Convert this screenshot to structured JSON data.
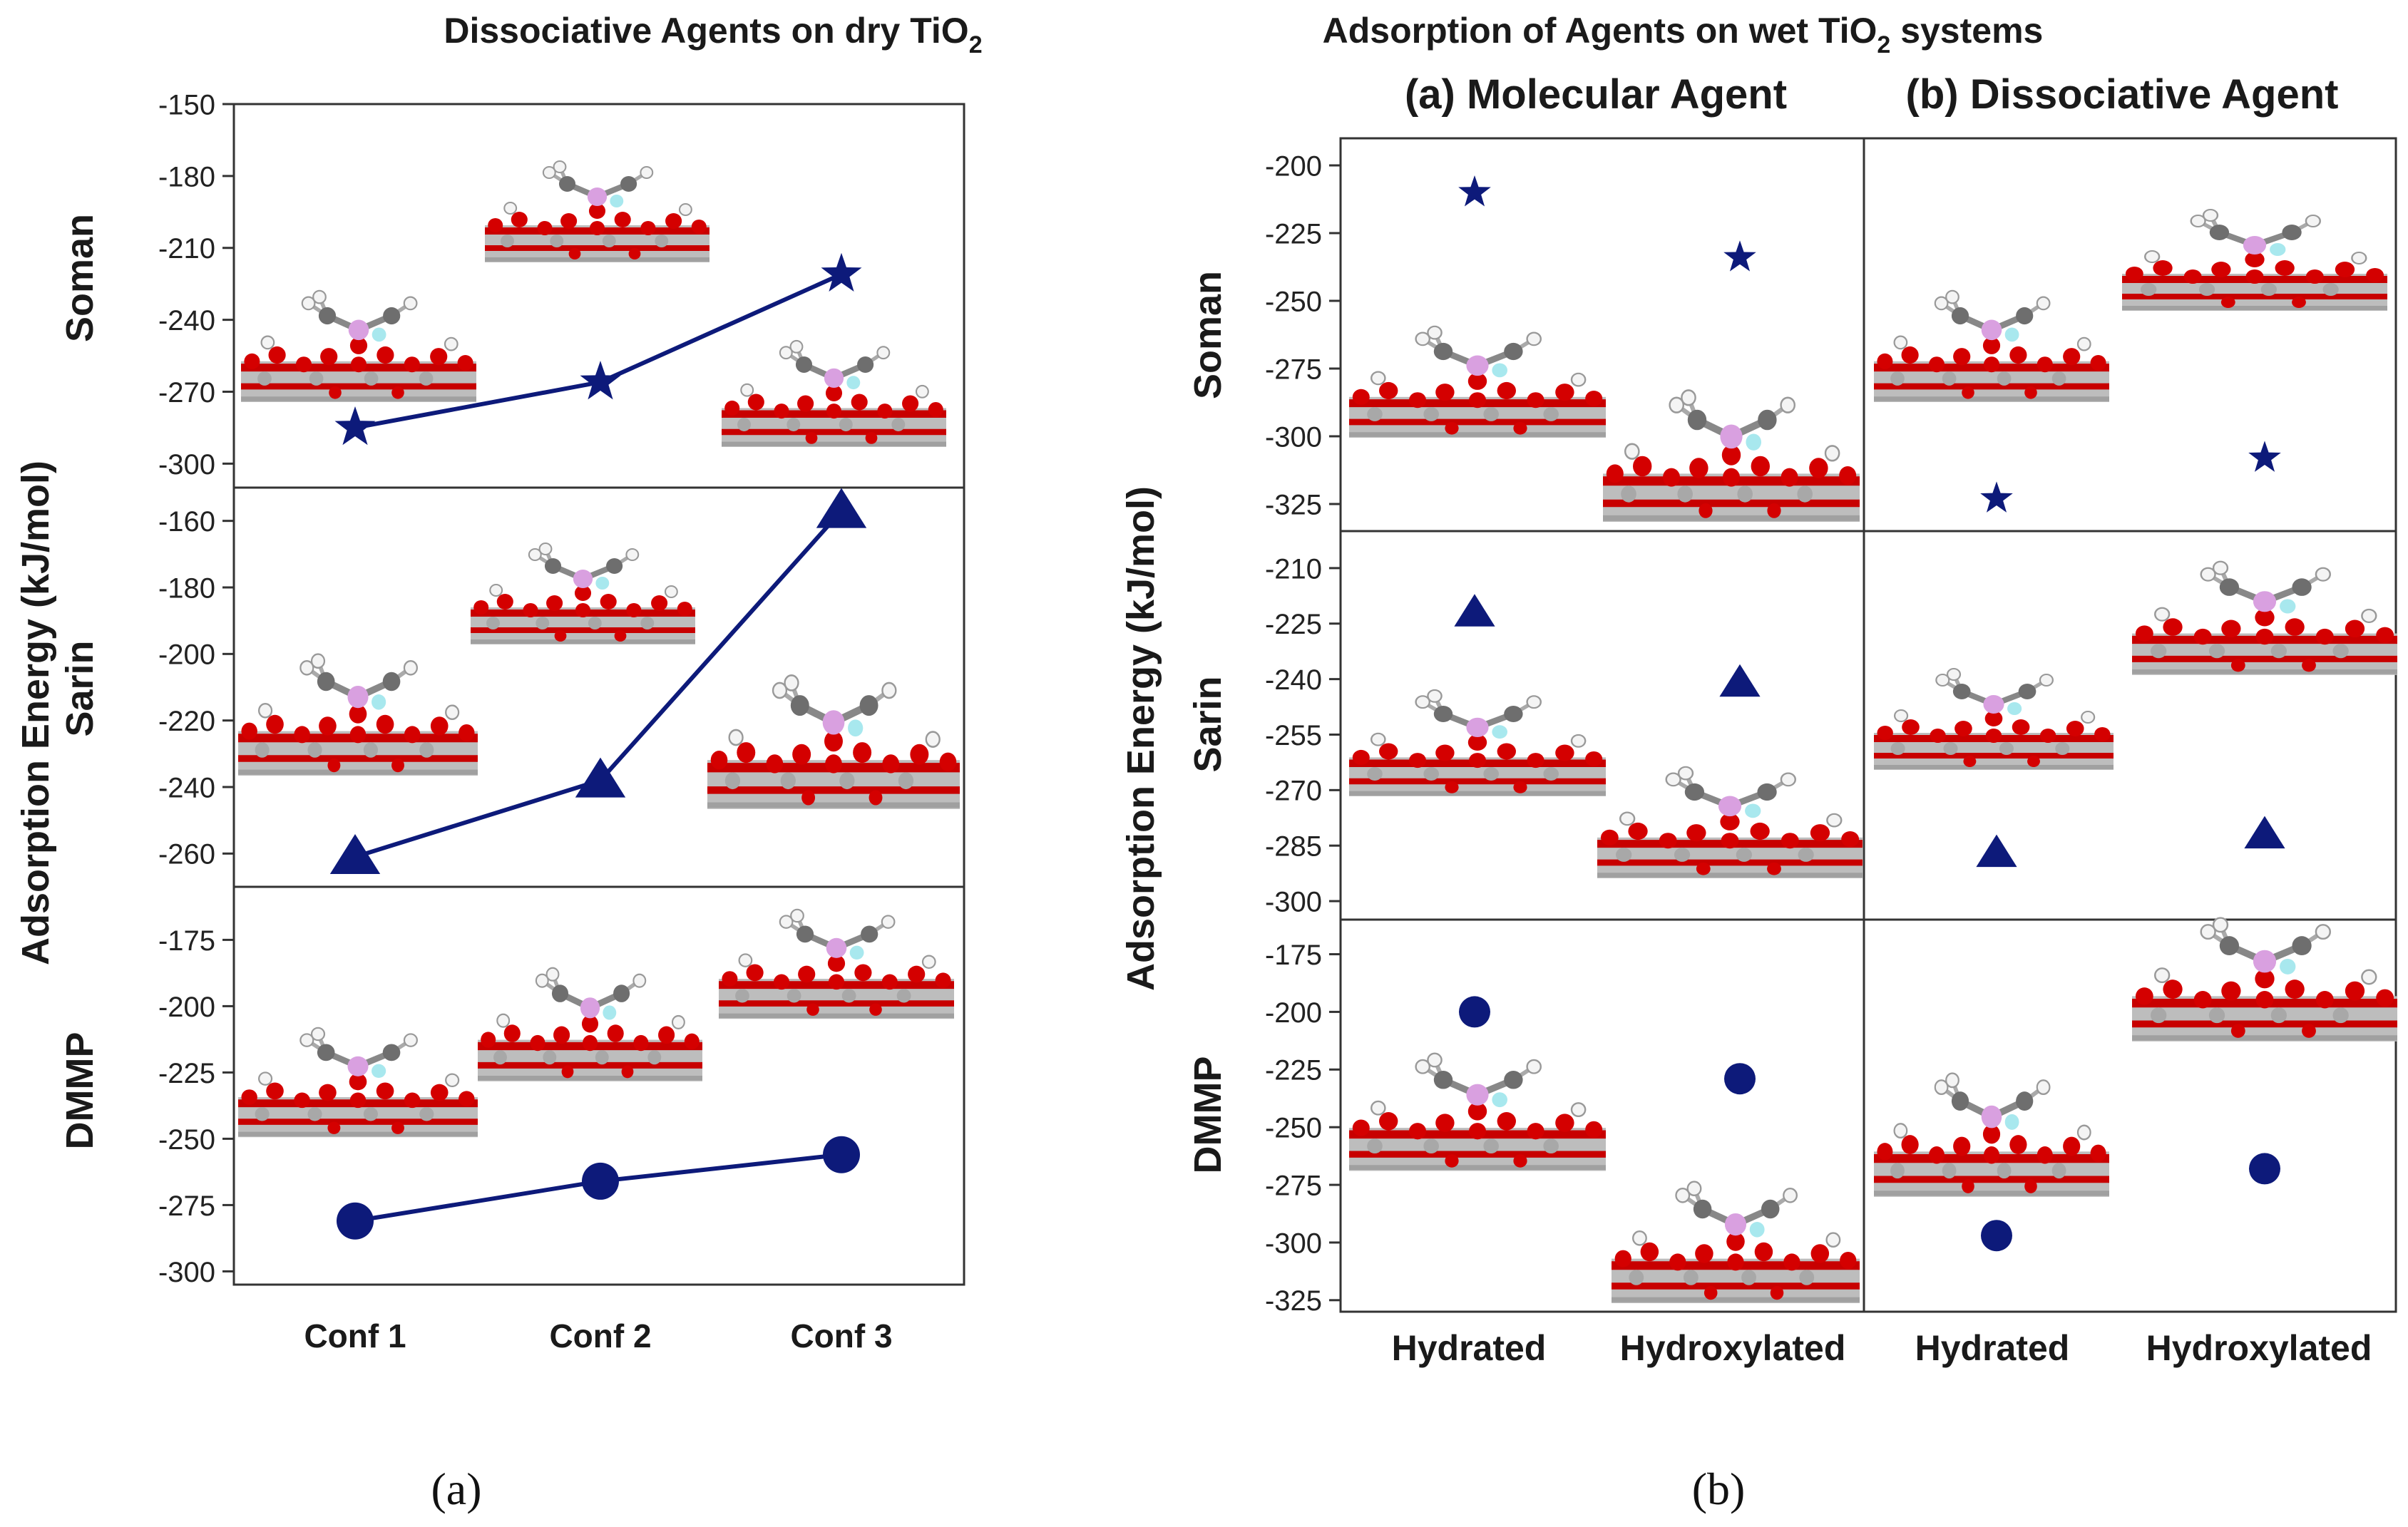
{
  "colors": {
    "marker": "#0d1a7a",
    "line": "#0d1a7a",
    "axis": "#333333",
    "oxygen": "#d40000",
    "titanium": "#a8a8a8",
    "carbon": "#6e6e6e",
    "hydrogen": "#f4f4f4",
    "phosphorus": "#d9a0e0",
    "fluorine": "#a8e8ee"
  },
  "icons": {
    "molecular_model": "ball-and-stick-structure"
  },
  "panel_a_label": "(a)",
  "panel_b_label": "(b)",
  "chart_data": [
    {
      "type": "line",
      "title_main": "Dissociative Agents on dry TiO",
      "title_sub": "2",
      "ylabel": "Adsorption Energy (kJ/mol)",
      "categories": [
        "Conf 1",
        "Conf 2",
        "Conf 3"
      ],
      "rows": [
        {
          "name": "Soman",
          "marker": "star",
          "ylim": [
            -310,
            -150
          ],
          "ticks": [
            -150,
            -180,
            -210,
            -240,
            -270,
            -300
          ],
          "tick_labels": [
            "-150",
            "-180",
            "-210",
            "-240",
            "-270",
            "-300"
          ],
          "values": [
            -285,
            -266,
            -221
          ]
        },
        {
          "name": "Sarin",
          "marker": "triangle",
          "ylim": [
            -270,
            -150
          ],
          "ticks": [
            -160,
            -180,
            -200,
            -220,
            -240,
            -260
          ],
          "tick_labels": [
            "-160",
            "-180",
            "-200",
            "-220",
            "-240",
            "-260"
          ],
          "values": [
            -261,
            -238,
            -157
          ]
        },
        {
          "name": "DMMP",
          "marker": "circle",
          "ylim": [
            -305,
            -155
          ],
          "ticks": [
            -175,
            -200,
            -225,
            -250,
            -275,
            -300
          ],
          "tick_labels": [
            "-175",
            "-200",
            "-225",
            "-250",
            "-275",
            "-300"
          ],
          "values": [
            -281,
            -266,
            -256
          ]
        }
      ]
    },
    {
      "type": "scatter",
      "title_main": "Adsorption of Agents on wet TiO",
      "title_sub": "2",
      "title_suffix": " systems",
      "ylabel": "Adsorption Energy (kJ/mol)",
      "groups": [
        "(a) Molecular Agent",
        "(b) Dissociative Agent"
      ],
      "categories": [
        "Hydrated",
        "Hydroxylated",
        "Hydrated",
        "Hydroxylated"
      ],
      "rows": [
        {
          "name": "Soman",
          "marker": "star",
          "ylim": [
            -335,
            -190
          ],
          "ticks": [
            -200,
            -225,
            -250,
            -275,
            -300,
            -325
          ],
          "tick_labels": [
            "-200",
            "-225",
            "-250",
            "-275",
            "-300",
            "-325"
          ],
          "values": [
            -210,
            -234,
            -323,
            -308
          ]
        },
        {
          "name": "Sarin",
          "marker": "triangle",
          "ylim": [
            -305,
            -200
          ],
          "ticks": [
            -210,
            -225,
            -240,
            -255,
            -270,
            -285,
            -300
          ],
          "tick_labels": [
            "-210",
            "-225",
            "-240",
            "-255",
            "-270",
            "-285",
            "-300"
          ],
          "values": [
            -222,
            -241,
            -287,
            -282
          ]
        },
        {
          "name": "DMMP",
          "marker": "circle",
          "ylim": [
            -330,
            -160
          ],
          "ticks": [
            -175,
            -200,
            -225,
            -250,
            -275,
            -300,
            -325
          ],
          "tick_labels": [
            "-175",
            "-200",
            "-225",
            "-250",
            "-275",
            "-300",
            "-325"
          ],
          "values": [
            -200,
            -229,
            -297,
            -268
          ]
        }
      ]
    }
  ]
}
